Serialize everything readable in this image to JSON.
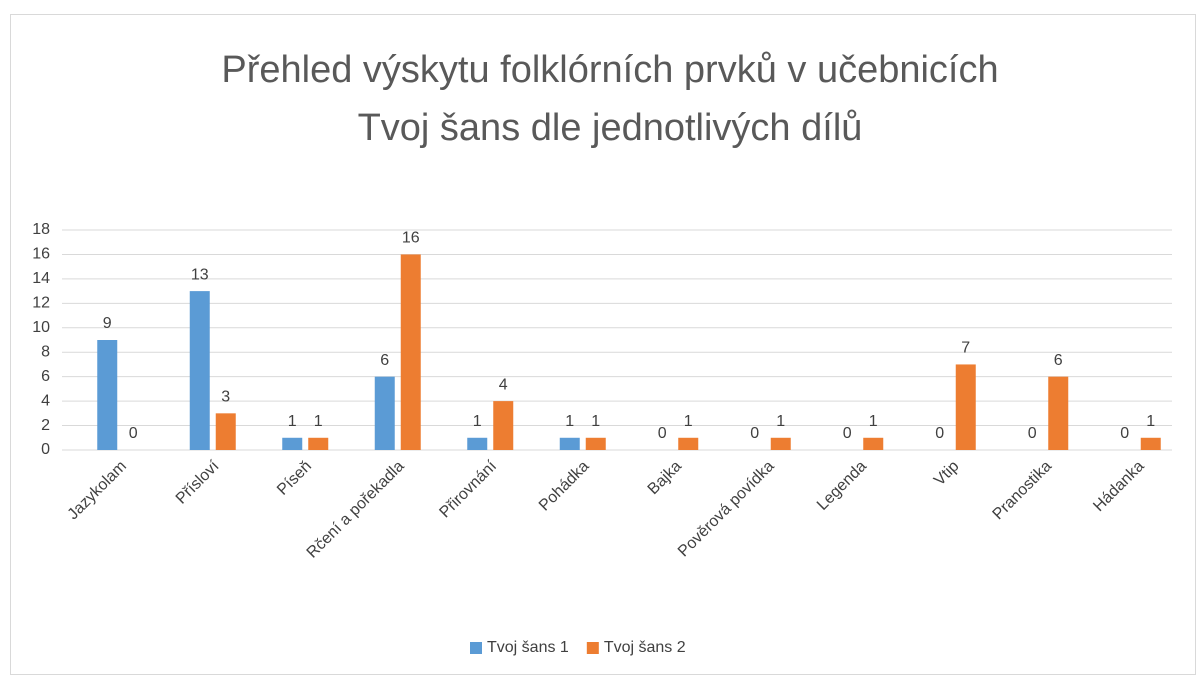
{
  "chart_data": {
    "type": "bar",
    "title": [
      "Přehled výskytu folklórních prvků v učebnicích",
      "Tvoj šans dle jednotlivých dílů"
    ],
    "categories": [
      "Jazykolam",
      "Přísloví",
      "Píseň",
      "Rčení a pořekadla",
      "Přirovnání",
      "Pohádka",
      "Bajka",
      "Pověrová povídka",
      "Legenda",
      "Vtip",
      "Pranostika",
      "Hádanka"
    ],
    "series": [
      {
        "name": "Tvoj šans 1",
        "color": "#5b9bd5",
        "values": [
          9,
          13,
          1,
          6,
          1,
          1,
          0,
          0,
          0,
          0,
          0,
          0
        ]
      },
      {
        "name": "Tvoj šans 2",
        "color": "#ed7d31",
        "values": [
          0,
          3,
          1,
          16,
          4,
          1,
          1,
          1,
          1,
          7,
          6,
          1
        ]
      }
    ],
    "ylim": [
      0,
      18
    ],
    "yticks": [
      0,
      2,
      4,
      6,
      8,
      10,
      12,
      14,
      16,
      18
    ],
    "grid": true,
    "legend": "bottom"
  }
}
